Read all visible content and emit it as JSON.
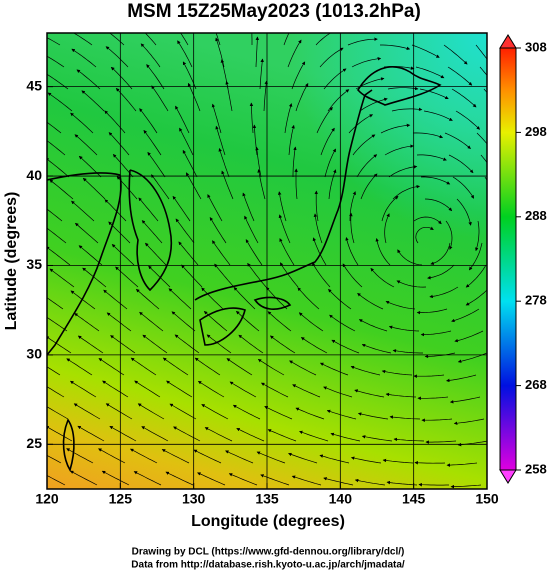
{
  "chart_data": {
    "type": "map",
    "title": "MSM 15Z25May2023 (1013.2hPa)",
    "x_label": "Longitude (degrees)",
    "y_label": "Latitude (degrees)",
    "xlim": [
      120,
      150
    ],
    "xticks": [
      120,
      125,
      130,
      135,
      140,
      145,
      150
    ],
    "ylim": [
      22.5,
      48
    ],
    "yticks": [
      25,
      30,
      35,
      40,
      45
    ],
    "grid": true,
    "colorbar": {
      "lim": [
        258,
        308
      ],
      "ticks": [
        258,
        268,
        278,
        288,
        298,
        308
      ]
    },
    "credits": [
      "Drawing by DCL (https://www.gfd-dennou.org/library/dcl/)",
      "Data from http://database.rish.kyoto-u.ac.jp/arch/jmadata/"
    ]
  }
}
